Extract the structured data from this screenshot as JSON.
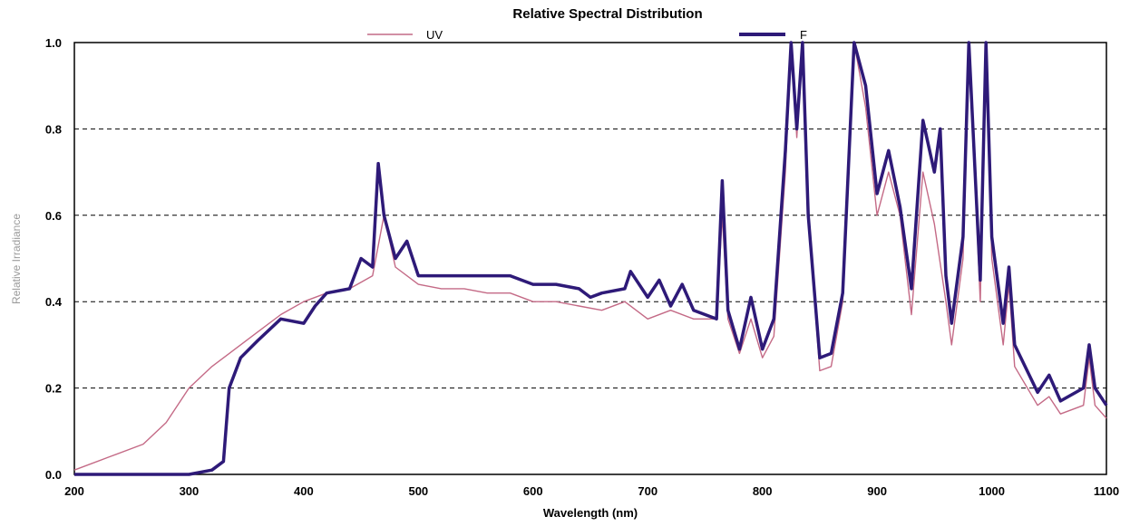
{
  "chart_data": {
    "type": "line",
    "title": "Relative Spectral Distribution",
    "xlabel": "Wavelength (nm)",
    "ylabel": "Relative Irradiance",
    "xlim": [
      200,
      1100
    ],
    "ylim": [
      0.0,
      1.0
    ],
    "x_ticks": [
      "200",
      "300",
      "400",
      "500",
      "600",
      "700",
      "800",
      "900",
      "1000",
      "1100"
    ],
    "y_ticks": [
      "0.0",
      "0.2",
      "0.4",
      "0.6",
      "0.8",
      "1.0"
    ],
    "grid": "horizontal dashed",
    "legend_position": "top",
    "series": [
      {
        "name": "UV",
        "color": "#c46a86",
        "points": [
          [
            200,
            0.01
          ],
          [
            230,
            0.04
          ],
          [
            260,
            0.07
          ],
          [
            280,
            0.12
          ],
          [
            300,
            0.2
          ],
          [
            320,
            0.25
          ],
          [
            340,
            0.29
          ],
          [
            360,
            0.33
          ],
          [
            380,
            0.37
          ],
          [
            400,
            0.4
          ],
          [
            420,
            0.42
          ],
          [
            440,
            0.43
          ],
          [
            460,
            0.46
          ],
          [
            470,
            0.6
          ],
          [
            480,
            0.48
          ],
          [
            500,
            0.44
          ],
          [
            520,
            0.43
          ],
          [
            540,
            0.43
          ],
          [
            560,
            0.42
          ],
          [
            580,
            0.42
          ],
          [
            600,
            0.4
          ],
          [
            620,
            0.4
          ],
          [
            640,
            0.39
          ],
          [
            660,
            0.38
          ],
          [
            680,
            0.4
          ],
          [
            700,
            0.36
          ],
          [
            720,
            0.38
          ],
          [
            740,
            0.36
          ],
          [
            760,
            0.36
          ],
          [
            765,
            0.6
          ],
          [
            770,
            0.36
          ],
          [
            780,
            0.28
          ],
          [
            790,
            0.36
          ],
          [
            800,
            0.27
          ],
          [
            810,
            0.32
          ],
          [
            820,
            0.7
          ],
          [
            825,
            1.0
          ],
          [
            830,
            0.78
          ],
          [
            835,
            1.0
          ],
          [
            840,
            0.6
          ],
          [
            850,
            0.24
          ],
          [
            860,
            0.25
          ],
          [
            870,
            0.4
          ],
          [
            880,
            1.0
          ],
          [
            890,
            0.85
          ],
          [
            900,
            0.6
          ],
          [
            910,
            0.7
          ],
          [
            920,
            0.6
          ],
          [
            930,
            0.37
          ],
          [
            940,
            0.7
          ],
          [
            950,
            0.58
          ],
          [
            960,
            0.4
          ],
          [
            965,
            0.3
          ],
          [
            975,
            0.5
          ],
          [
            980,
            1.0
          ],
          [
            990,
            0.4
          ],
          [
            995,
            1.0
          ],
          [
            1000,
            0.5
          ],
          [
            1010,
            0.3
          ],
          [
            1015,
            0.44
          ],
          [
            1020,
            0.25
          ],
          [
            1040,
            0.16
          ],
          [
            1050,
            0.18
          ],
          [
            1060,
            0.14
          ],
          [
            1080,
            0.16
          ],
          [
            1085,
            0.27
          ],
          [
            1090,
            0.16
          ],
          [
            1100,
            0.13
          ]
        ]
      },
      {
        "name": "F",
        "color": "#2e1a78",
        "points": [
          [
            200,
            0.0
          ],
          [
            250,
            0.0
          ],
          [
            300,
            0.0
          ],
          [
            320,
            0.01
          ],
          [
            330,
            0.03
          ],
          [
            335,
            0.2
          ],
          [
            345,
            0.27
          ],
          [
            360,
            0.31
          ],
          [
            380,
            0.36
          ],
          [
            400,
            0.35
          ],
          [
            410,
            0.39
          ],
          [
            420,
            0.42
          ],
          [
            440,
            0.43
          ],
          [
            450,
            0.5
          ],
          [
            460,
            0.48
          ],
          [
            465,
            0.72
          ],
          [
            470,
            0.6
          ],
          [
            480,
            0.5
          ],
          [
            490,
            0.54
          ],
          [
            500,
            0.46
          ],
          [
            520,
            0.46
          ],
          [
            540,
            0.46
          ],
          [
            560,
            0.46
          ],
          [
            580,
            0.46
          ],
          [
            600,
            0.44
          ],
          [
            620,
            0.44
          ],
          [
            640,
            0.43
          ],
          [
            650,
            0.41
          ],
          [
            660,
            0.42
          ],
          [
            680,
            0.43
          ],
          [
            685,
            0.47
          ],
          [
            700,
            0.41
          ],
          [
            710,
            0.45
          ],
          [
            720,
            0.39
          ],
          [
            730,
            0.44
          ],
          [
            740,
            0.38
          ],
          [
            760,
            0.36
          ],
          [
            765,
            0.68
          ],
          [
            770,
            0.38
          ],
          [
            780,
            0.29
          ],
          [
            790,
            0.41
          ],
          [
            800,
            0.29
          ],
          [
            810,
            0.36
          ],
          [
            820,
            0.75
          ],
          [
            825,
            1.0
          ],
          [
            830,
            0.8
          ],
          [
            835,
            1.0
          ],
          [
            840,
            0.6
          ],
          [
            850,
            0.27
          ],
          [
            860,
            0.28
          ],
          [
            870,
            0.42
          ],
          [
            880,
            1.0
          ],
          [
            890,
            0.9
          ],
          [
            900,
            0.65
          ],
          [
            910,
            0.75
          ],
          [
            920,
            0.62
          ],
          [
            930,
            0.43
          ],
          [
            940,
            0.82
          ],
          [
            950,
            0.7
          ],
          [
            955,
            0.8
          ],
          [
            960,
            0.46
          ],
          [
            965,
            0.35
          ],
          [
            975,
            0.55
          ],
          [
            980,
            1.0
          ],
          [
            990,
            0.45
          ],
          [
            995,
            1.0
          ],
          [
            1000,
            0.55
          ],
          [
            1010,
            0.35
          ],
          [
            1015,
            0.48
          ],
          [
            1020,
            0.3
          ],
          [
            1040,
            0.19
          ],
          [
            1050,
            0.23
          ],
          [
            1060,
            0.17
          ],
          [
            1080,
            0.2
          ],
          [
            1085,
            0.3
          ],
          [
            1090,
            0.2
          ],
          [
            1100,
            0.16
          ]
        ]
      }
    ]
  }
}
